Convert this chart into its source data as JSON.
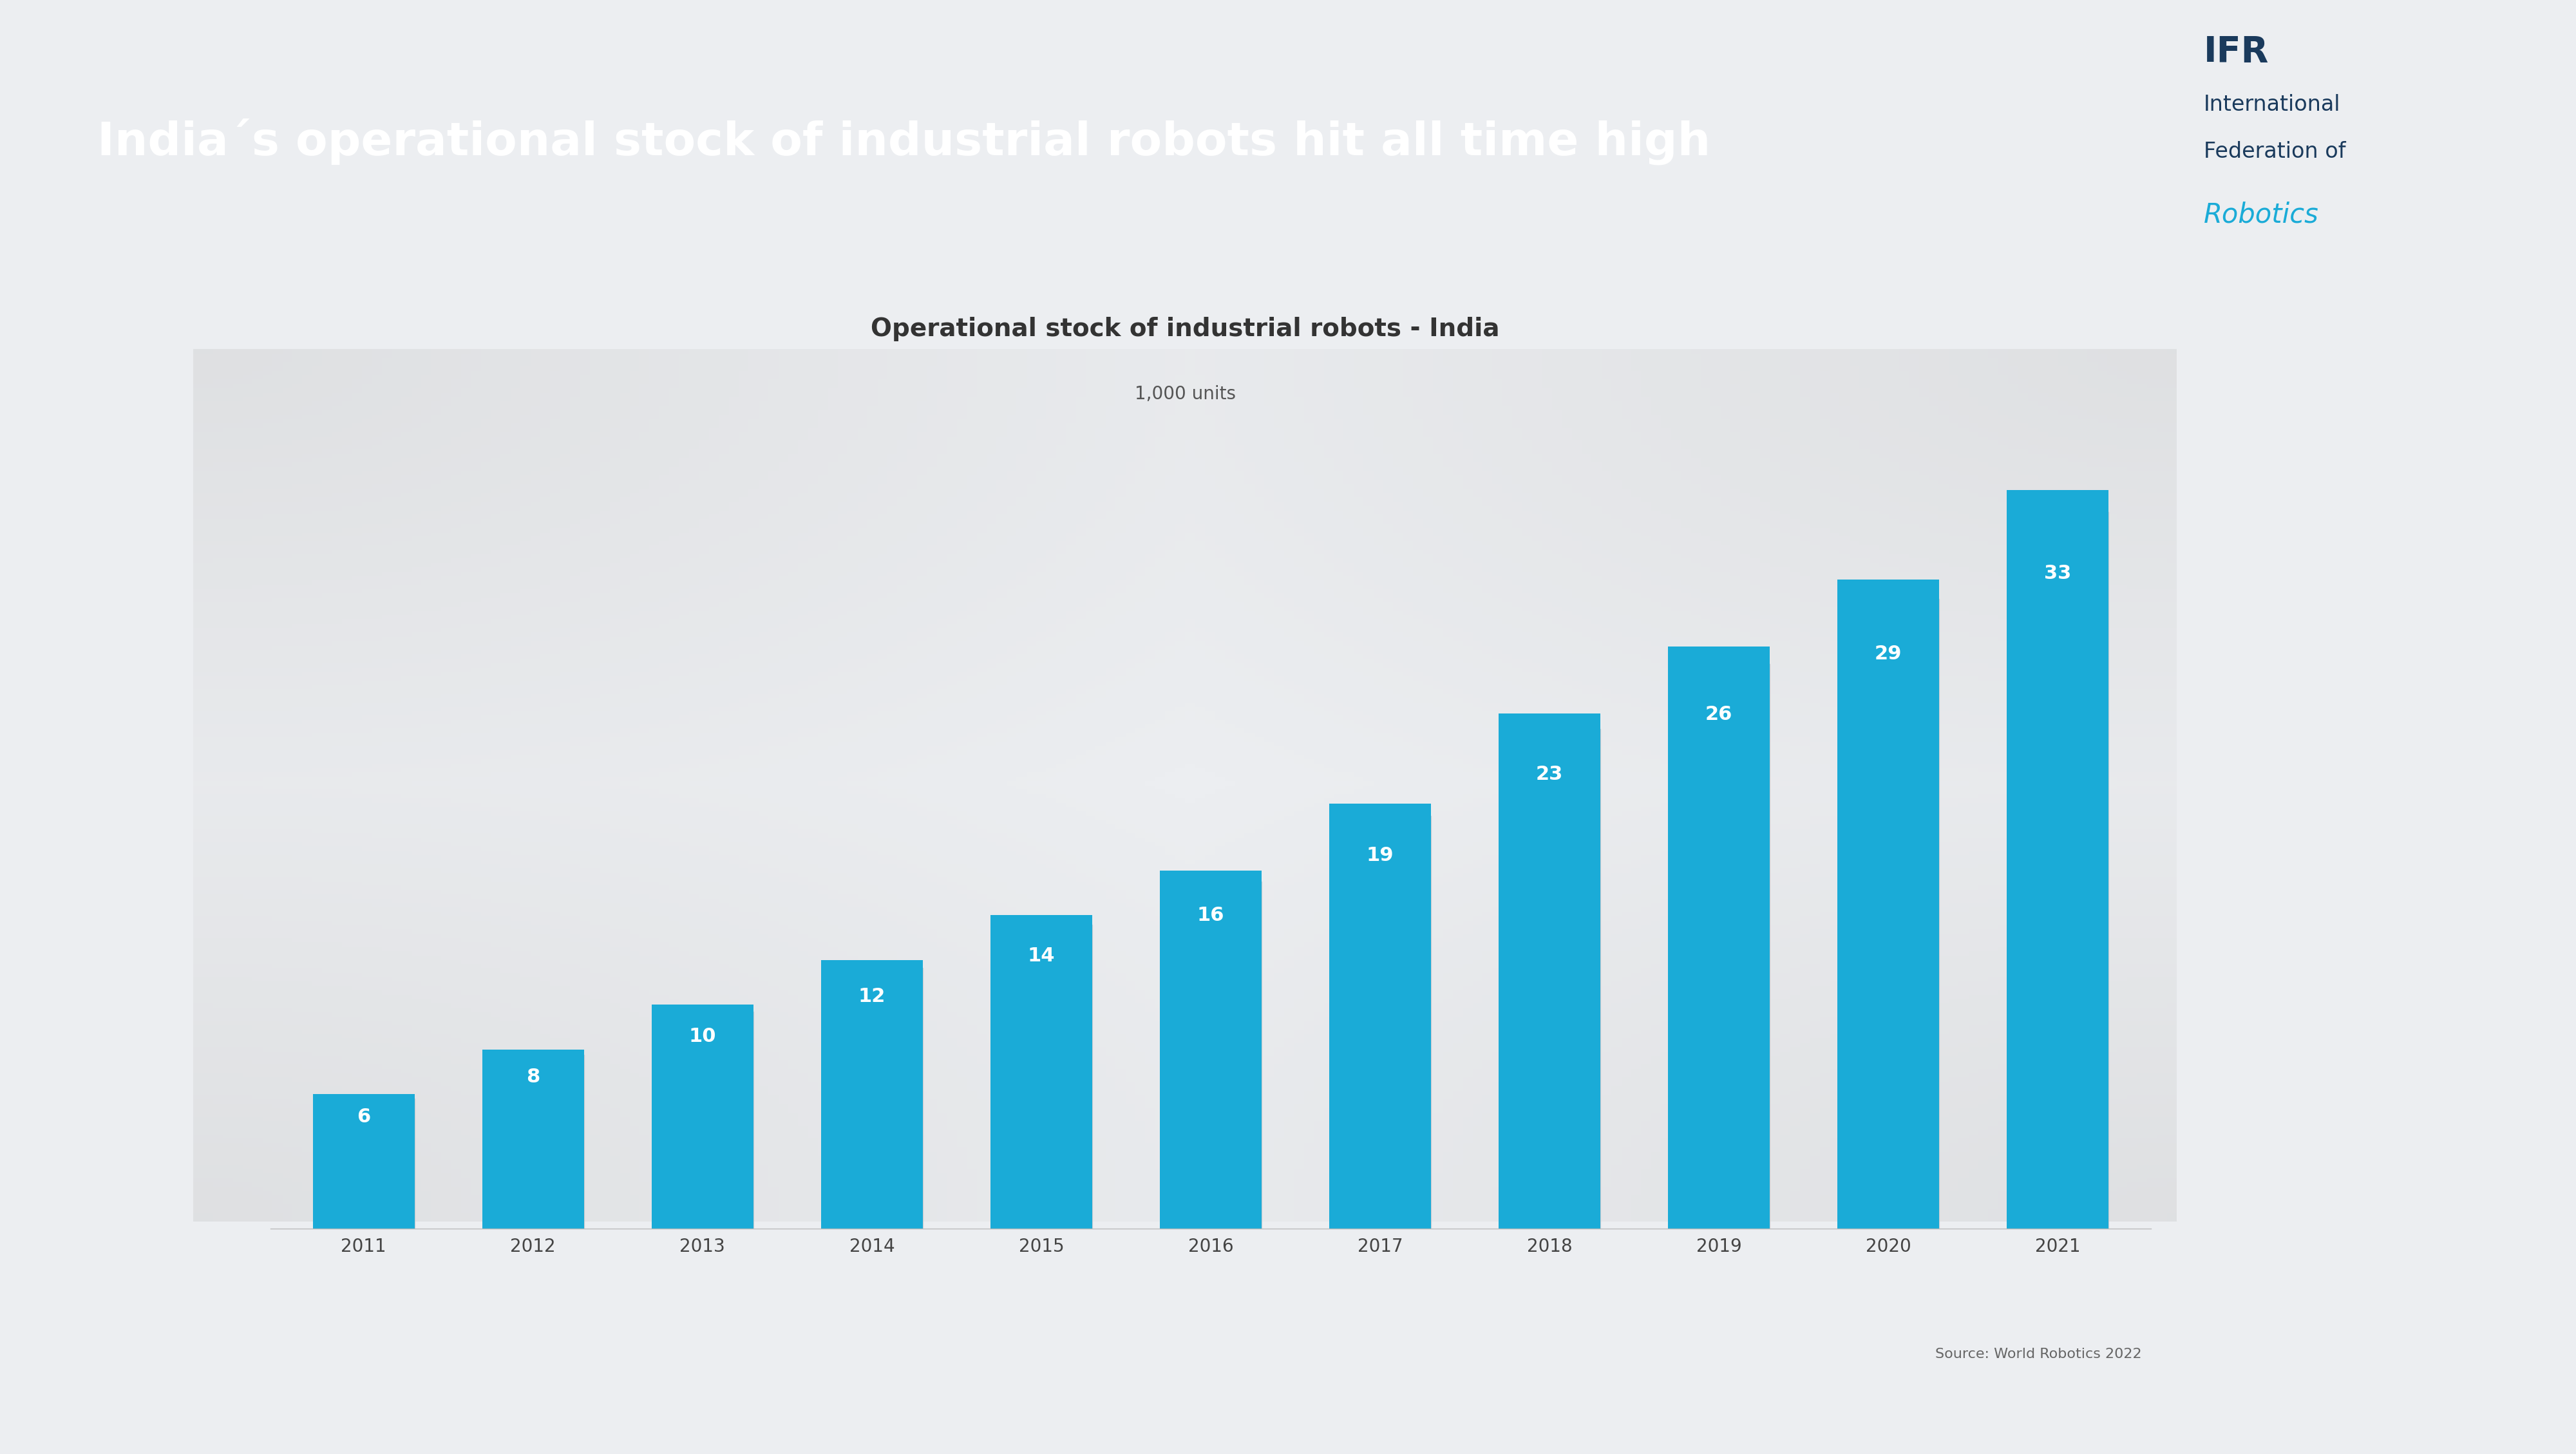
{
  "title": "Operational stock of industrial robots - India",
  "subtitle": "1,000 units",
  "source": "Source: World Robotics 2022",
  "years": [
    2011,
    2012,
    2013,
    2014,
    2015,
    2016,
    2017,
    2018,
    2019,
    2020,
    2021
  ],
  "values": [
    6,
    8,
    10,
    12,
    14,
    16,
    19,
    23,
    26,
    29,
    33
  ],
  "bar_color": "#1aabd7",
  "bar_label_color": "#ffffff",
  "title_fontsize": 28,
  "subtitle_fontsize": 20,
  "label_fontsize": 22,
  "tick_fontsize": 20,
  "source_fontsize": 16,
  "header_text": "India´s operational stock of industrial robots hit all time high",
  "header_bg": "#1aabd7",
  "header_text_color": "#ffffff",
  "bg_color": "#eceef1",
  "chart_bg": "#ffffff",
  "ylim": [
    0,
    38
  ],
  "left_stripe_top_color": "#3d4f66",
  "left_stripe_bottom_color": "#1aabd7",
  "shadow_color": "#c5c8cd"
}
